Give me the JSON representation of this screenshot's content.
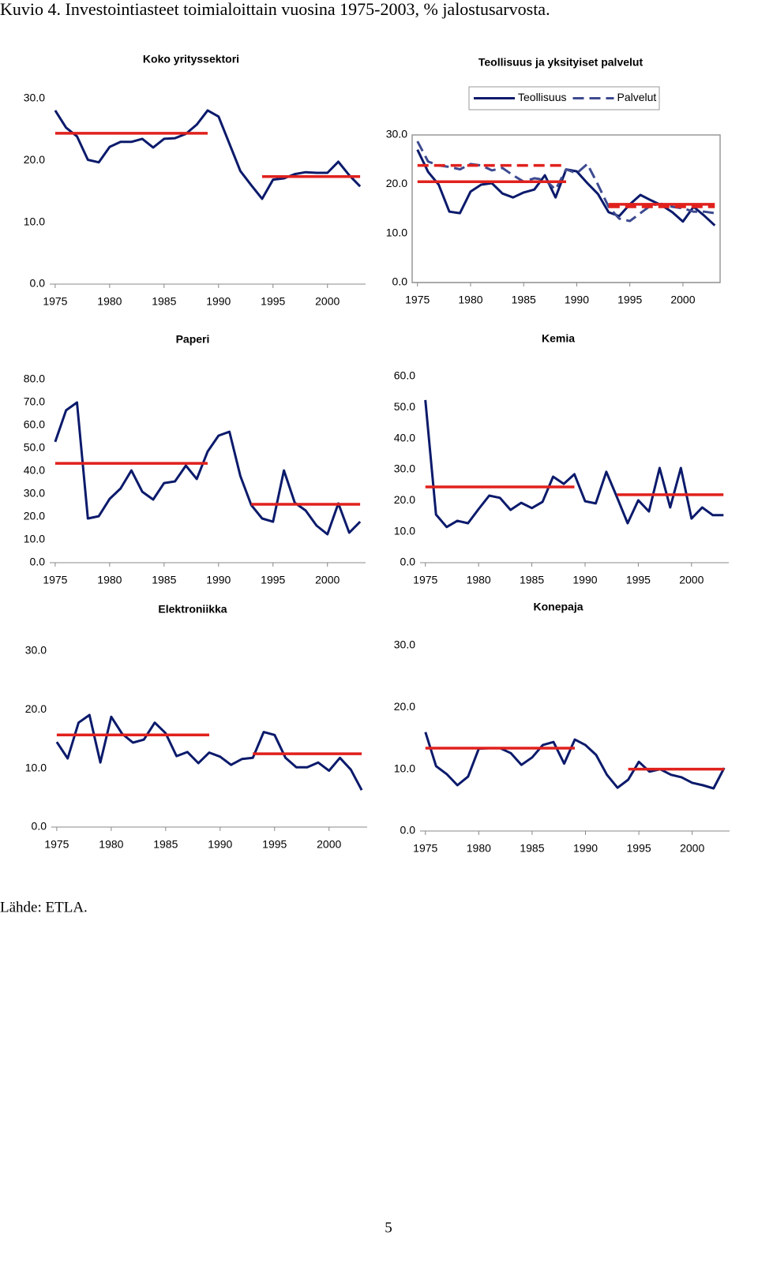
{
  "title": "Kuvio 4. Investointiasteet toimialoittain vuosina 1975-2003, % jalostusarvosta.",
  "source": "Lähde: ETLA.",
  "page_number": "5",
  "chart_data": [
    {
      "type": "line",
      "title": "Koko yrityssektori",
      "x": [
        1975,
        1976,
        1977,
        1978,
        1979,
        1980,
        1981,
        1982,
        1983,
        1984,
        1985,
        1986,
        1987,
        1988,
        1989,
        1990,
        1991,
        1992,
        1993,
        1994,
        1995,
        1996,
        1997,
        1998,
        1999,
        2000,
        2001,
        2002,
        2003
      ],
      "xlim": [
        1974.5,
        2003.5
      ],
      "xticks": [
        1975,
        1980,
        1985,
        1990,
        1995,
        2000
      ],
      "ylim": [
        0,
        30
      ],
      "yticks": [
        {
          "value": 0,
          "label": "0.0"
        },
        {
          "value": 10,
          "label": "10.0"
        },
        {
          "value": 20,
          "label": "20.0"
        },
        {
          "value": 30,
          "label": "30.0"
        }
      ],
      "series": [
        {
          "color": "#0b1a6b",
          "values": [
            28.1,
            25.3,
            23.9,
            20.1,
            19.7,
            22.2,
            23.0,
            23.0,
            23.5,
            22.1,
            23.5,
            23.6,
            24.3,
            25.8,
            28.1,
            27.1,
            22.7,
            18.3,
            16.0,
            13.8,
            16.9,
            17.1,
            17.8,
            18.1,
            18.0,
            18.0,
            19.8,
            17.6,
            15.8
          ]
        }
      ],
      "averages": [
        {
          "series": 0,
          "x": [
            1975,
            1989
          ],
          "value": 24.4,
          "color": "#e0211d"
        },
        {
          "series": 0,
          "x": [
            1994,
            2003
          ],
          "value": 17.4,
          "color": "#e0211d"
        }
      ]
    },
    {
      "type": "line",
      "title": "Teollisuus ja yksityiset palvelut",
      "x": [
        1975,
        1976,
        1977,
        1978,
        1979,
        1980,
        1981,
        1982,
        1983,
        1984,
        1985,
        1986,
        1987,
        1988,
        1989,
        1990,
        1991,
        1992,
        1993,
        1994,
        1995,
        1996,
        1997,
        1998,
        1999,
        2000,
        2001,
        2002,
        2003
      ],
      "xlim": [
        1974.5,
        2003.5
      ],
      "xticks": [
        1975,
        1980,
        1985,
        1990,
        1995,
        2000
      ],
      "ylim": [
        0,
        30
      ],
      "yticks": [
        {
          "value": 0,
          "label": "0.0"
        },
        {
          "value": 10,
          "label": "10.0"
        },
        {
          "value": 20,
          "label": "20.0"
        },
        {
          "value": 30,
          "label": "30.0"
        }
      ],
      "legend": "top",
      "series": [
        {
          "name": "Teollisuus",
          "color": "#0b1a6b",
          "dash": false,
          "values": [
            27.0,
            22.5,
            19.9,
            14.4,
            14.1,
            18.5,
            19.9,
            20.2,
            18.1,
            17.3,
            18.3,
            18.9,
            21.8,
            17.3,
            23.0,
            22.6,
            20.2,
            18.0,
            14.3,
            13.5,
            15.9,
            17.8,
            16.7,
            15.7,
            14.3,
            12.4,
            15.4,
            13.6,
            11.6
          ]
        },
        {
          "name": "Palvelut",
          "color": "#3d4a8f",
          "dash": true,
          "values": [
            28.7,
            24.6,
            23.8,
            23.5,
            23.0,
            24.1,
            23.8,
            22.8,
            23.3,
            21.8,
            20.5,
            21.2,
            20.9,
            18.9,
            23.0,
            22.2,
            24.1,
            19.9,
            15.4,
            13.0,
            12.5,
            14.1,
            15.7,
            16.0,
            15.4,
            15.1,
            14.4,
            14.4,
            14.1
          ]
        }
      ],
      "averages": [
        {
          "series": 0,
          "x": [
            1975,
            1989
          ],
          "value": 20.5,
          "color": "#e0211d"
        },
        {
          "series": 0,
          "x": [
            1993,
            2003
          ],
          "value": 15.9,
          "color": "#e0211d"
        },
        {
          "series": 1,
          "x": [
            1975,
            1989
          ],
          "value": 23.8,
          "color": "#e0211d"
        },
        {
          "series": 1,
          "x": [
            1993,
            2003
          ],
          "value": 15.4,
          "color": "#e0211d"
        }
      ]
    },
    {
      "type": "line",
      "title": "Paperi",
      "x": [
        1975,
        1976,
        1977,
        1978,
        1979,
        1980,
        1981,
        1982,
        1983,
        1984,
        1985,
        1986,
        1987,
        1988,
        1989,
        1990,
        1991,
        1992,
        1993,
        1994,
        1995,
        1996,
        1997,
        1998,
        1999,
        2000,
        2001,
        2002,
        2003
      ],
      "xlim": [
        1974.5,
        2003.5
      ],
      "xticks": [
        1975,
        1980,
        1985,
        1990,
        1995,
        2000
      ],
      "ylim": [
        0,
        80
      ],
      "yticks": [
        {
          "value": 0,
          "label": "0.0"
        },
        {
          "value": 10,
          "label": "10.0"
        },
        {
          "value": 20,
          "label": "20.0"
        },
        {
          "value": 30,
          "label": "30.0"
        },
        {
          "value": 40,
          "label": "40.0"
        },
        {
          "value": 50,
          "label": "50.0"
        },
        {
          "value": 60,
          "label": "60.0"
        },
        {
          "value": 70,
          "label": "70.0"
        },
        {
          "value": 80,
          "label": "80.0"
        }
      ],
      "series": [
        {
          "color": "#0b1a6b",
          "values": [
            52.8,
            66.6,
            70.0,
            19.3,
            20.3,
            27.9,
            32.4,
            40.3,
            31.0,
            27.6,
            34.8,
            35.5,
            42.4,
            36.6,
            48.6,
            55.5,
            57.2,
            37.9,
            25.2,
            19.3,
            17.9,
            40.3,
            26.2,
            22.8,
            16.2,
            12.4,
            25.9,
            13.1,
            17.9
          ]
        }
      ],
      "averages": [
        {
          "series": 0,
          "x": [
            1975,
            1989
          ],
          "value": 43.4,
          "color": "#e0211d"
        },
        {
          "series": 0,
          "x": [
            1993,
            2003
          ],
          "value": 25.5,
          "color": "#e0211d"
        }
      ]
    },
    {
      "type": "line",
      "title": "Kemia",
      "x": [
        1975,
        1976,
        1977,
        1978,
        1979,
        1980,
        1981,
        1982,
        1983,
        1984,
        1985,
        1986,
        1987,
        1988,
        1989,
        1990,
        1991,
        1992,
        1993,
        1994,
        1995,
        1996,
        1997,
        1998,
        1999,
        2000,
        2001,
        2002,
        2003
      ],
      "xlim": [
        1974.5,
        2003.5
      ],
      "xticks": [
        1975,
        1980,
        1985,
        1990,
        1995,
        2000
      ],
      "ylim": [
        0,
        60
      ],
      "yticks": [
        {
          "value": 0,
          "label": "0.0"
        },
        {
          "value": 10,
          "label": "10.0"
        },
        {
          "value": 20,
          "label": "20.0"
        },
        {
          "value": 30,
          "label": "30.0"
        },
        {
          "value": 40,
          "label": "40.0"
        },
        {
          "value": 50,
          "label": "50.0"
        },
        {
          "value": 60,
          "label": "60.0"
        }
      ],
      "series": [
        {
          "color": "#0b1a6b",
          "values": [
            52.4,
            15.5,
            11.5,
            13.5,
            12.7,
            17.3,
            21.6,
            20.9,
            17.0,
            19.3,
            17.6,
            19.6,
            27.7,
            25.4,
            28.5,
            19.8,
            19.1,
            29.3,
            21.1,
            12.7,
            20.1,
            16.5,
            30.5,
            17.8,
            30.5,
            14.2,
            17.8,
            15.3,
            15.3
          ]
        }
      ],
      "averages": [
        {
          "series": 0,
          "x": [
            1975,
            1989
          ],
          "value": 24.4,
          "color": "#e0211d"
        },
        {
          "series": 0,
          "x": [
            1993,
            2003
          ],
          "value": 21.9,
          "color": "#e0211d"
        }
      ]
    },
    {
      "type": "line",
      "title": "Elektroniikka",
      "x": [
        1975,
        1976,
        1977,
        1978,
        1979,
        1980,
        1981,
        1982,
        1983,
        1984,
        1985,
        1986,
        1987,
        1988,
        1989,
        1990,
        1991,
        1992,
        1993,
        1994,
        1995,
        1996,
        1997,
        1998,
        1999,
        2000,
        2001,
        2002,
        2003
      ],
      "xlim": [
        1974.5,
        2003.5
      ],
      "xticks": [
        1975,
        1980,
        1985,
        1990,
        1995,
        2000
      ],
      "ylim": [
        0,
        30
      ],
      "yticks": [
        {
          "value": 0,
          "label": "0.0"
        },
        {
          "value": 10,
          "label": "10.0"
        },
        {
          "value": 20,
          "label": "20.0"
        },
        {
          "value": 30,
          "label": "30.0"
        }
      ],
      "series": [
        {
          "color": "#0b1a6b",
          "values": [
            14.5,
            11.7,
            17.8,
            19.1,
            11.0,
            18.8,
            15.9,
            14.4,
            14.9,
            17.8,
            16.0,
            12.1,
            12.8,
            10.9,
            12.7,
            12.0,
            10.6,
            11.6,
            11.8,
            16.2,
            15.7,
            11.8,
            10.2,
            10.2,
            11.0,
            9.6,
            11.8,
            9.8,
            6.3
          ]
        }
      ],
      "averages": [
        {
          "series": 0,
          "x": [
            1975,
            1989
          ],
          "value": 15.7,
          "color": "#e0211d"
        },
        {
          "series": 0,
          "x": [
            1993,
            2003
          ],
          "value": 12.5,
          "color": "#e0211d"
        }
      ]
    },
    {
      "type": "line",
      "title": "Konepaja",
      "x": [
        1975,
        1976,
        1977,
        1978,
        1979,
        1980,
        1981,
        1982,
        1983,
        1984,
        1985,
        1986,
        1987,
        1988,
        1989,
        1990,
        1991,
        1992,
        1993,
        1994,
        1995,
        1996,
        1997,
        1998,
        1999,
        2000,
        2001,
        2002,
        2003
      ],
      "xlim": [
        1974.5,
        2003.5
      ],
      "xticks": [
        1975,
        1980,
        1985,
        1990,
        1995,
        2000
      ],
      "ylim": [
        0,
        30
      ],
      "yticks": [
        {
          "value": 0,
          "label": "0.0"
        },
        {
          "value": 10,
          "label": "10.0"
        },
        {
          "value": 20,
          "label": "20.0"
        },
        {
          "value": 30,
          "label": "30.0"
        }
      ],
      "series": [
        {
          "color": "#0b1a6b",
          "values": [
            16.0,
            10.5,
            9.2,
            7.4,
            8.8,
            13.3,
            13.4,
            13.4,
            12.6,
            10.7,
            11.9,
            13.9,
            14.4,
            10.9,
            14.8,
            13.9,
            12.3,
            9.1,
            7.0,
            8.3,
            11.2,
            9.6,
            10.0,
            9.1,
            8.7,
            7.8,
            7.4,
            6.9,
            10.2
          ]
        }
      ],
      "averages": [
        {
          "series": 0,
          "x": [
            1975,
            1989
          ],
          "value": 13.4,
          "color": "#e0211d"
        },
        {
          "series": 0,
          "x": [
            1994,
            2003
          ],
          "value": 10.0,
          "color": "#e0211d"
        }
      ]
    }
  ]
}
